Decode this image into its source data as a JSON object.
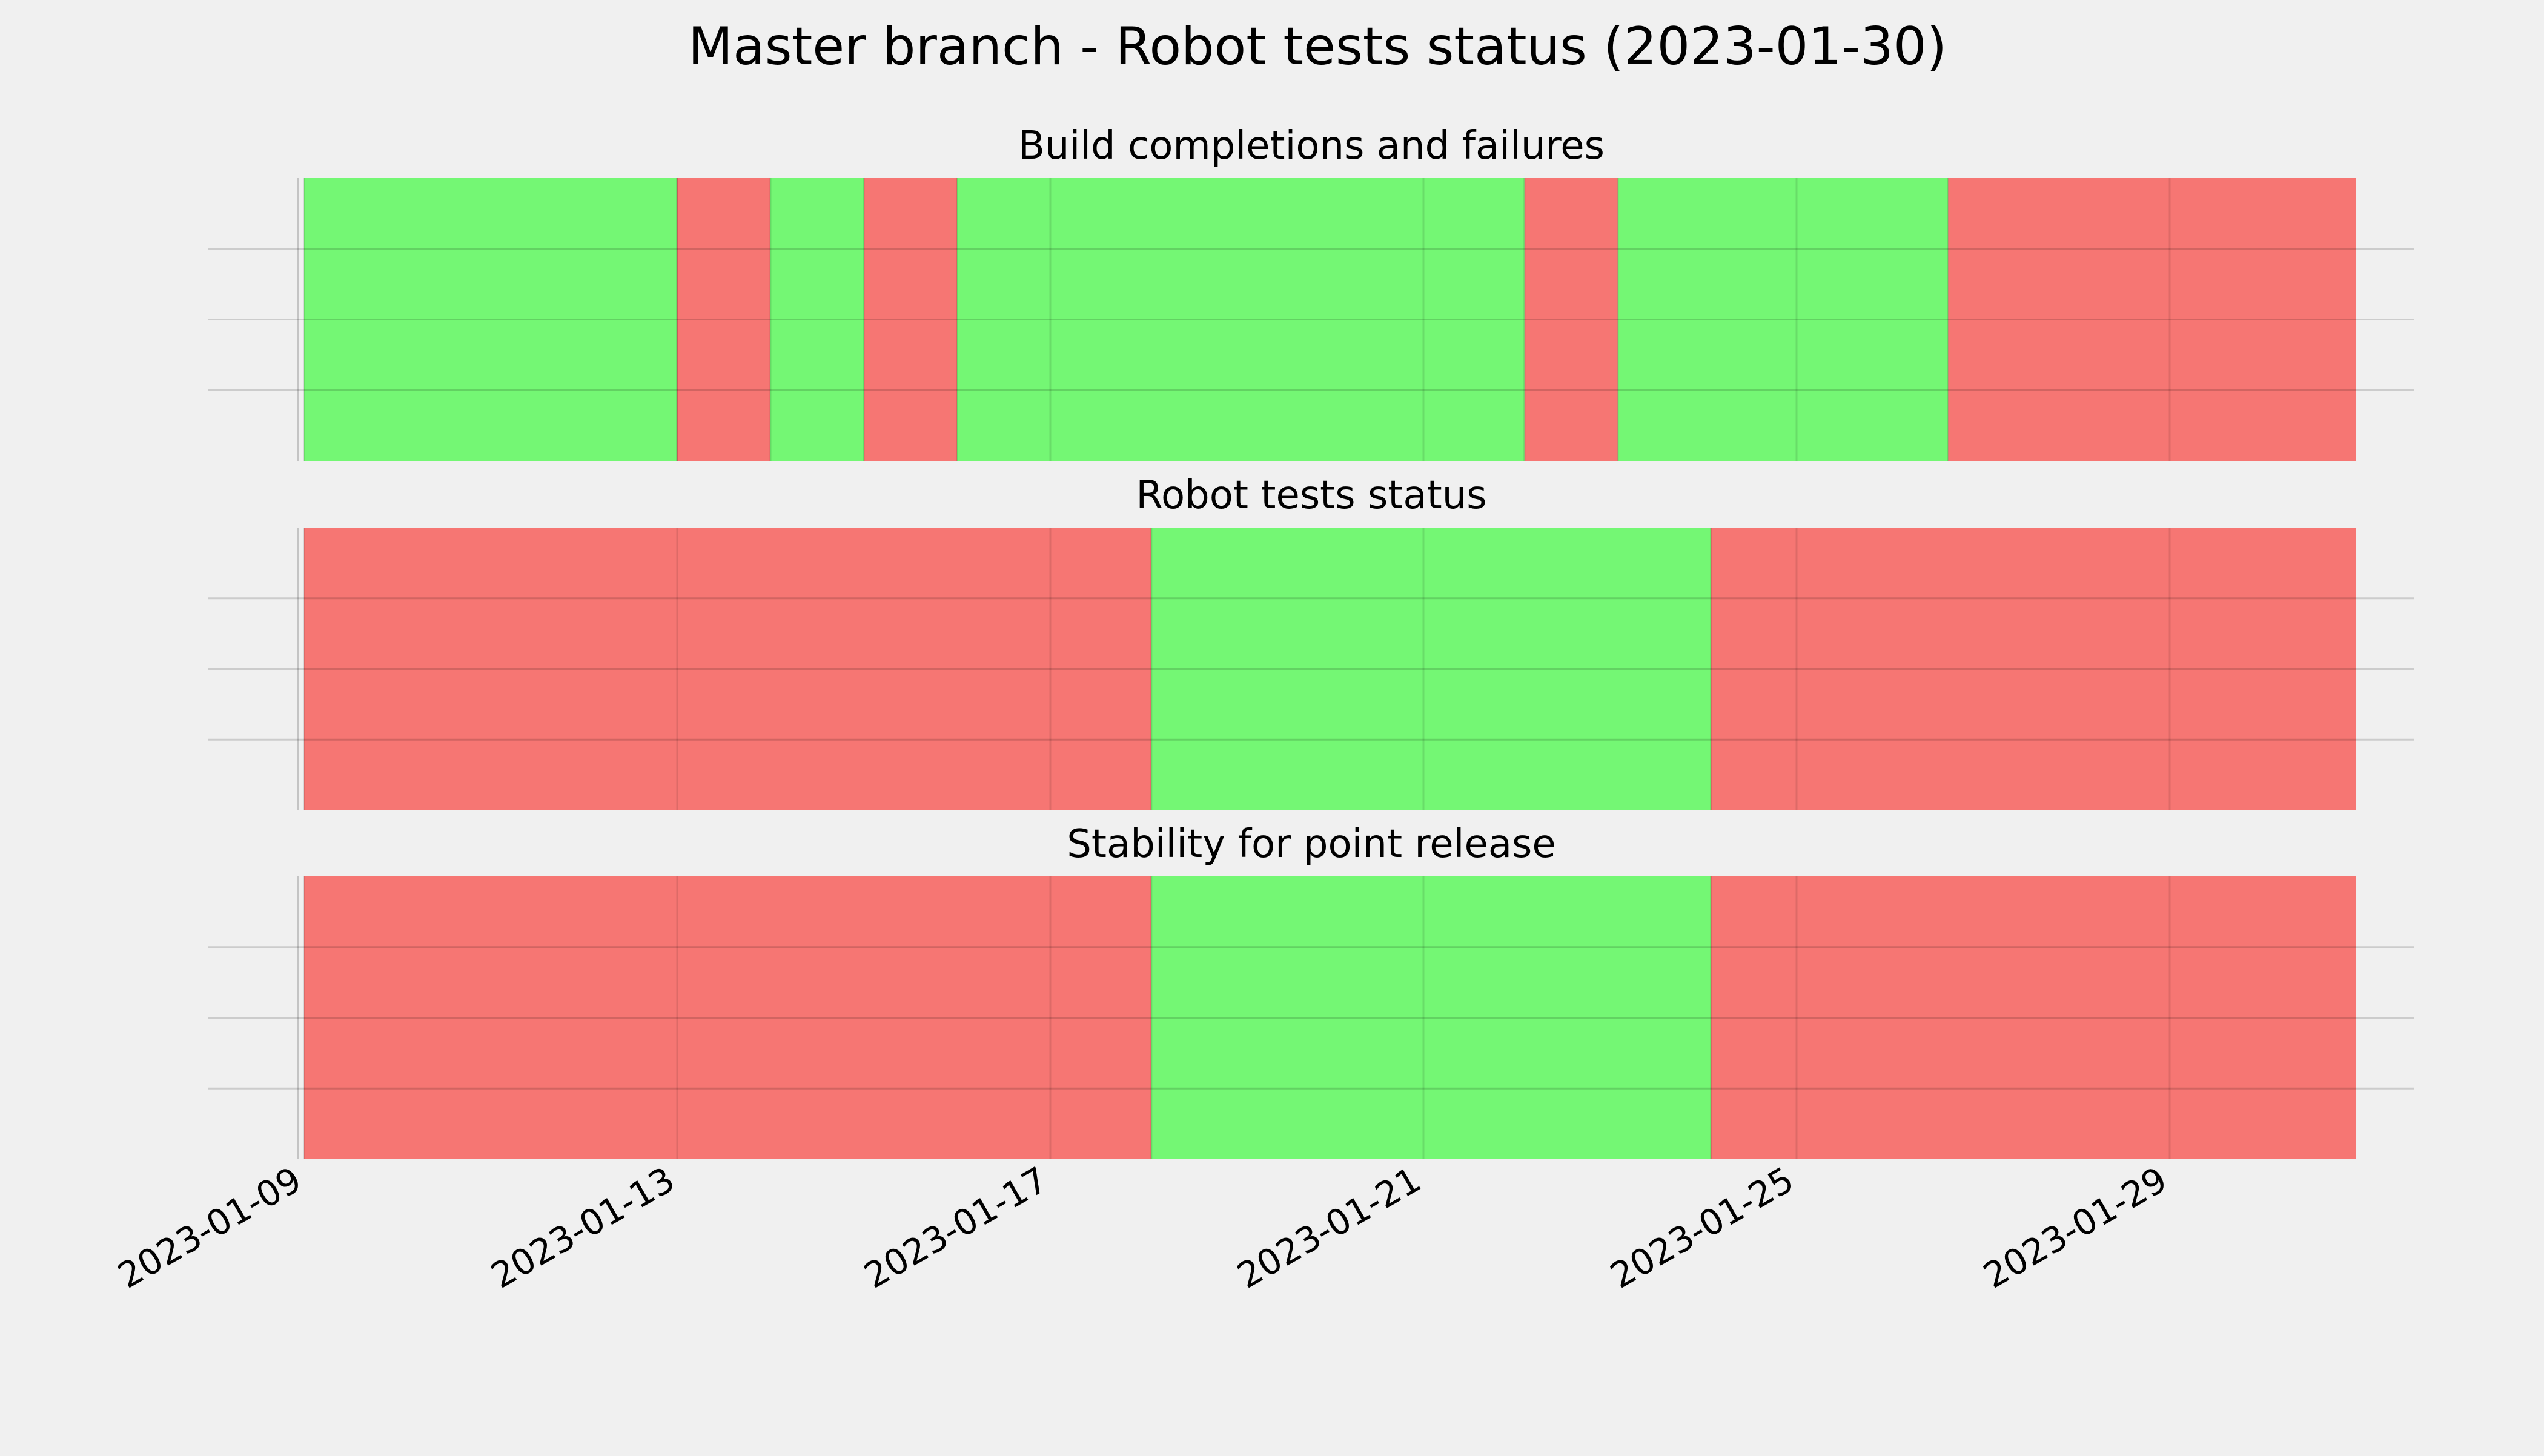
{
  "chart_data": {
    "type": "status-timeline",
    "title": "Master branch - Robot tests status (2023-01-30)",
    "x_axis": {
      "type": "date",
      "range": [
        "2023-01-09",
        "2023-01-31"
      ],
      "ticks": [
        "2023-01-09",
        "2023-01-13",
        "2023-01-17",
        "2023-01-21",
        "2023-01-25",
        "2023-01-29"
      ]
    },
    "grid": true,
    "status_colors": {
      "pass": "#74f774",
      "fail": "#f67673"
    },
    "panels": [
      {
        "title": "Build completions and failures",
        "segments": [
          {
            "start": "2023-01-09T00:00",
            "end": "2023-01-13T00:00",
            "status": "pass"
          },
          {
            "start": "2023-01-13T00:00",
            "end": "2023-01-14T00:00",
            "status": "fail"
          },
          {
            "start": "2023-01-14T00:00",
            "end": "2023-01-15T00:00",
            "status": "pass"
          },
          {
            "start": "2023-01-15T00:00",
            "end": "2023-01-16T00:00",
            "status": "fail"
          },
          {
            "start": "2023-01-16T00:00",
            "end": "2023-01-22T02:00",
            "status": "pass"
          },
          {
            "start": "2023-01-22T02:00",
            "end": "2023-01-23T02:00",
            "status": "fail"
          },
          {
            "start": "2023-01-23T02:00",
            "end": "2023-01-26T15:00",
            "status": "pass"
          },
          {
            "start": "2023-01-26T15:00",
            "end": "2023-01-31T00:00",
            "status": "fail"
          }
        ]
      },
      {
        "title": "Robot tests status",
        "segments": [
          {
            "start": "2023-01-09T00:00",
            "end": "2023-01-18T02:00",
            "status": "fail"
          },
          {
            "start": "2023-01-18T02:00",
            "end": "2023-01-24T02:00",
            "status": "pass"
          },
          {
            "start": "2023-01-24T02:00",
            "end": "2023-01-31T00:00",
            "status": "fail"
          }
        ]
      },
      {
        "title": "Stability for point release",
        "segments": [
          {
            "start": "2023-01-09T00:00",
            "end": "2023-01-18T02:00",
            "status": "fail"
          },
          {
            "start": "2023-01-18T02:00",
            "end": "2023-01-24T02:00",
            "status": "pass"
          },
          {
            "start": "2023-01-24T02:00",
            "end": "2023-01-31T00:00",
            "status": "fail"
          }
        ]
      }
    ]
  }
}
